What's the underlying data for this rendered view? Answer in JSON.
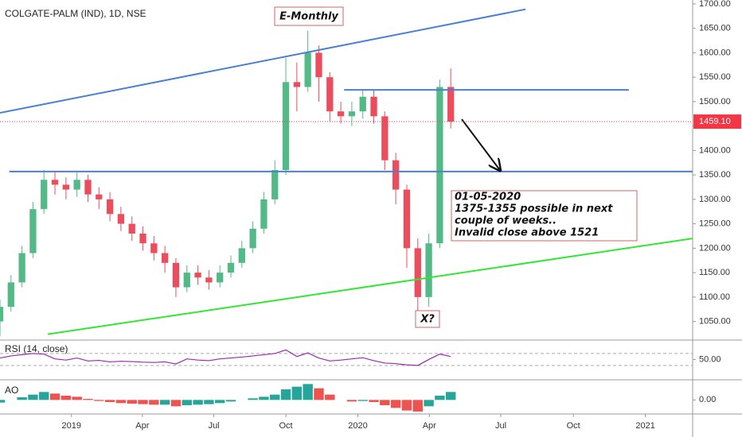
{
  "chart_data": [
    {
      "type": "candlestick",
      "title": "COLGATE-PALM (IND), 1D, NSE",
      "x": [
        -13,
        -11,
        -9,
        -7,
        -5,
        -3,
        -1,
        1,
        3,
        5,
        7,
        9,
        11,
        13,
        15,
        17,
        19,
        21,
        23,
        25,
        27,
        29,
        31,
        33,
        35,
        37,
        39,
        41,
        43,
        45,
        47,
        49,
        51,
        53,
        55,
        57,
        59,
        61,
        63,
        65,
        67,
        69
      ],
      "open": [
        1050,
        1080,
        1130,
        1190,
        1280,
        1340,
        1330,
        1320,
        1340,
        1310,
        1300,
        1270,
        1250,
        1230,
        1210,
        1190,
        1170,
        1120,
        1150,
        1140,
        1130,
        1150,
        1170,
        1200,
        1240,
        1300,
        1360,
        1540,
        1530,
        1600,
        1550,
        1480,
        1470,
        1480,
        1510,
        1470,
        1380,
        1320,
        1200,
        1100,
        1210,
        1530
      ],
      "high": [
        1095,
        1145,
        1205,
        1295,
        1360,
        1355,
        1345,
        1355,
        1350,
        1325,
        1315,
        1285,
        1265,
        1245,
        1225,
        1205,
        1180,
        1165,
        1165,
        1155,
        1165,
        1185,
        1215,
        1255,
        1315,
        1380,
        1590,
        1580,
        1645,
        1615,
        1560,
        1500,
        1500,
        1525,
        1525,
        1480,
        1395,
        1330,
        1220,
        1230,
        1545,
        1568
      ],
      "low": [
        1020,
        1070,
        1120,
        1180,
        1270,
        1310,
        1300,
        1305,
        1295,
        1280,
        1255,
        1235,
        1215,
        1195,
        1175,
        1150,
        1100,
        1110,
        1125,
        1115,
        1120,
        1140,
        1160,
        1190,
        1230,
        1290,
        1350,
        1480,
        1520,
        1500,
        1460,
        1455,
        1450,
        1465,
        1455,
        1360,
        1290,
        1160,
        1065,
        1080,
        1200,
        1445
      ],
      "close": [
        1080,
        1130,
        1190,
        1280,
        1340,
        1330,
        1320,
        1340,
        1310,
        1300,
        1270,
        1250,
        1230,
        1210,
        1190,
        1170,
        1120,
        1150,
        1140,
        1130,
        1150,
        1170,
        1200,
        1240,
        1300,
        1360,
        1540,
        1530,
        1600,
        1550,
        1480,
        1470,
        1480,
        1510,
        1470,
        1380,
        1320,
        1200,
        1100,
        1210,
        1530,
        1459.1
      ],
      "up_color": "#53b987",
      "down_color": "#eb4d5c",
      "xlim": [
        -13,
        113
      ],
      "ylim": [
        1012,
        1708
      ],
      "xticks": [
        {
          "value": 0,
          "label": "2019"
        },
        {
          "value": 12.9,
          "label": "Apr"
        },
        {
          "value": 25.9,
          "label": "Jul"
        },
        {
          "value": 39,
          "label": "Oct"
        },
        {
          "value": 52.1,
          "label": "2020"
        },
        {
          "value": 65.1,
          "label": "Apr"
        },
        {
          "value": 78.1,
          "label": "Jul"
        },
        {
          "value": 91.3,
          "label": "Oct"
        },
        {
          "value": 104.4,
          "label": "2021"
        }
      ],
      "yticks": [
        {
          "value": 1050,
          "label": "1050.00"
        },
        {
          "value": 1100,
          "label": "1100.00"
        },
        {
          "value": 1150,
          "label": "1150.00"
        },
        {
          "value": 1200,
          "label": "1200.00"
        },
        {
          "value": 1250,
          "label": "1250.00"
        },
        {
          "value": 1300,
          "label": "1300.00"
        },
        {
          "value": 1350,
          "label": "1350.00"
        },
        {
          "value": 1400,
          "label": "1400.00"
        },
        {
          "value": 1450,
          "label": "1450.00"
        },
        {
          "value": 1500,
          "label": "1500.00"
        },
        {
          "value": 1550,
          "label": "1550.00"
        },
        {
          "value": 1600,
          "label": "1600.00"
        },
        {
          "value": 1650,
          "label": "1650.00"
        },
        {
          "value": 1700,
          "label": "1700.00"
        }
      ],
      "last_price": {
        "value": 1459.1,
        "label": "1459.10"
      },
      "last_price_color": "#f23645",
      "drawings": [
        {
          "color": "#4a7fd4",
          "points": [
            [
              -13,
              1477
            ],
            [
              82.6,
              1689
            ]
          ]
        },
        {
          "color": "#4a7fd4",
          "points": [
            [
              -11.3,
              1357
            ],
            [
              113,
              1357
            ]
          ]
        },
        {
          "color": "#4a7fd4",
          "points": [
            [
              49.6,
              1524
            ],
            [
              101.4,
              1524
            ]
          ]
        },
        {
          "color": "#33e633",
          "points": [
            [
              -4.3,
              1024
            ],
            [
              113,
              1220
            ]
          ]
        },
        {
          "color": "#111111",
          "points": [
            [
              71,
              1464
            ],
            [
              78,
              1359
            ]
          ],
          "arrow": true
        }
      ],
      "annotations": {
        "title_box": "E-Monthly",
        "note": [
          "01-05-2020",
          "1375-1355 possible in next",
          "couple of weeks..",
          "Invalid close above 1521"
        ],
        "mark": "X?"
      }
    },
    {
      "type": "line",
      "title": "RSI (14, close)",
      "color": "#9c27b0",
      "x": [
        -13,
        -11,
        -9,
        -7,
        -5,
        -3,
        -1,
        1,
        3,
        5,
        7,
        9,
        11,
        13,
        15,
        17,
        19,
        21,
        23,
        25,
        27,
        29,
        31,
        33,
        35,
        37,
        39,
        41,
        43,
        45,
        47,
        49,
        51,
        53,
        55,
        57,
        59,
        61,
        63,
        65,
        67,
        69
      ],
      "values": [
        55,
        62,
        66,
        70,
        68,
        52,
        48,
        55,
        45,
        47,
        42,
        44,
        43,
        41,
        40,
        42,
        35,
        52,
        48,
        46,
        52,
        55,
        58,
        62,
        66,
        70,
        82,
        60,
        72,
        55,
        45,
        48,
        52,
        56,
        46,
        38,
        36,
        32,
        30,
        50,
        68,
        60
      ],
      "xlim": [
        -13,
        113
      ],
      "ylim": [
        -18,
        115
      ],
      "yticks": [
        {
          "value": 50,
          "label": "50.00"
        }
      ],
      "levels": [
        70,
        30
      ]
    },
    {
      "type": "bar",
      "title": "AO",
      "up_color": "#26a69a",
      "down_color": "#ef5350",
      "x": [
        -13,
        -11,
        -9,
        -7,
        -5,
        -3,
        -1,
        1,
        3,
        5,
        7,
        9,
        11,
        13,
        15,
        17,
        19,
        21,
        23,
        25,
        27,
        29,
        31,
        33,
        35,
        37,
        39,
        41,
        43,
        45,
        47,
        49,
        51,
        53,
        55,
        57,
        59,
        61,
        63,
        65,
        67,
        69
      ],
      "values": [
        -5,
        0,
        5,
        10,
        15,
        12,
        8,
        6,
        2,
        -2,
        -4,
        -6,
        -7,
        -8,
        -9,
        -9,
        -12,
        -10,
        -9,
        -8,
        -6,
        -3,
        0,
        3,
        6,
        10,
        20,
        25,
        30,
        22,
        10,
        0,
        -3,
        -2,
        -4,
        -10,
        -15,
        -20,
        -22,
        -12,
        8,
        15
      ],
      "xlim": [
        -13,
        113
      ],
      "ylim": [
        -25,
        35
      ],
      "yticks": [
        {
          "value": 0,
          "label": "0.00"
        }
      ]
    }
  ]
}
